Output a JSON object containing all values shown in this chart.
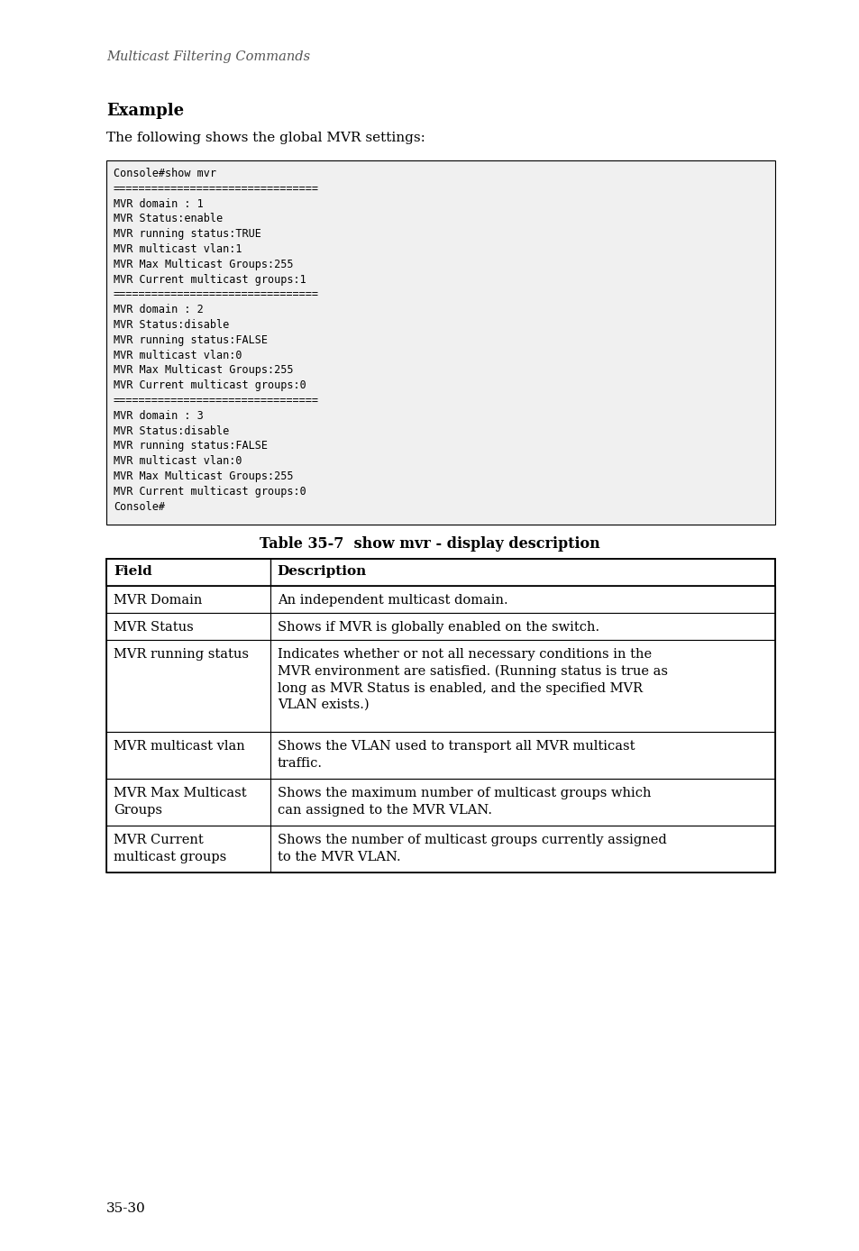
{
  "page_title": "Multicast Filtering Commands",
  "page_number": "35-30",
  "section_header": "Example",
  "section_text": "The following shows the global MVR settings:",
  "console_lines": [
    "Console#show mvr",
    "================================",
    "MVR domain : 1",
    "MVR Status:enable",
    "MVR running status:TRUE",
    "MVR multicast vlan:1",
    "MVR Max Multicast Groups:255",
    "MVR Current multicast groups:1",
    "================================",
    "MVR domain : 2",
    "MVR Status:disable",
    "MVR running status:FALSE",
    "MVR multicast vlan:0",
    "MVR Max Multicast Groups:255",
    "MVR Current multicast groups:0",
    "================================",
    "MVR domain : 3",
    "MVR Status:disable",
    "MVR running status:FALSE",
    "MVR multicast vlan:0",
    "MVR Max Multicast Groups:255",
    "MVR Current multicast groups:0",
    "Console#"
  ],
  "table_title": "Table 35-7  show mvr - display description",
  "table_headers": [
    "Field",
    "Description"
  ],
  "table_rows": [
    [
      "MVR Domain",
      "An independent multicast domain."
    ],
    [
      "MVR Status",
      "Shows if MVR is globally enabled on the switch."
    ],
    [
      "MVR running status",
      "Indicates whether or not all necessary conditions in the\nMVR environment are satisfied. (Running status is true as\nlong as MVR Status is enabled, and the specified MVR\nVLAN exists.)"
    ],
    [
      "MVR multicast vlan",
      "Shows the VLAN used to transport all MVR multicast\ntraffic."
    ],
    [
      "MVR Max Multicast\nGroups",
      "Shows the maximum number of multicast groups which\ncan assigned to the MVR VLAN."
    ],
    [
      "MVR Current\nmulticast groups",
      "Shows the number of multicast groups currently assigned\nto the MVR VLAN."
    ]
  ],
  "bg_color": "#ffffff",
  "text_color": "#000000",
  "console_bg": "#f0f0f0",
  "table_border_color": "#000000",
  "fig_width": 9.54,
  "fig_height": 13.88,
  "dpi": 100
}
